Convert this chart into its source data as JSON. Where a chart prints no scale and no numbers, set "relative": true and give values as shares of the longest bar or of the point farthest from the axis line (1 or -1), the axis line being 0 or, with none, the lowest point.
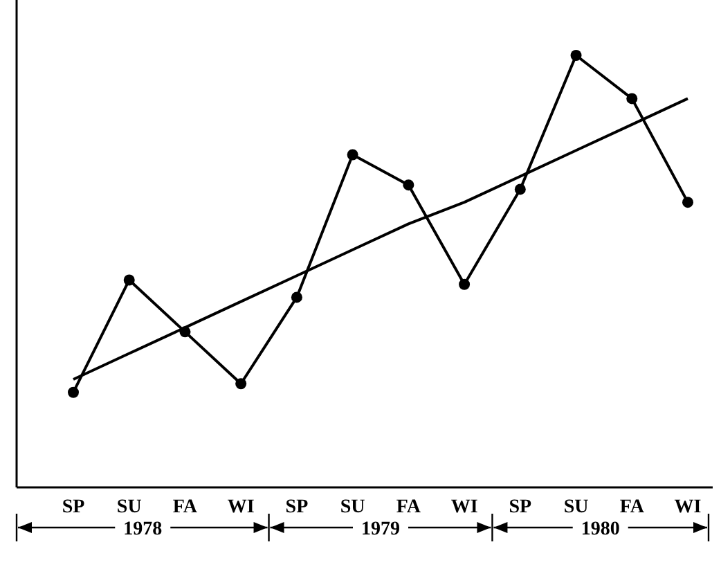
{
  "chart_data": {
    "type": "line",
    "relative": true,
    "categories": [
      "SP",
      "SU",
      "FA",
      "WI",
      "SP",
      "SU",
      "FA",
      "WI",
      "SP",
      "SU",
      "FA",
      "WI"
    ],
    "series": [
      {
        "color": "#000000",
        "marker": "circle",
        "values": [
          0.22,
          0.48,
          0.36,
          0.24,
          0.44,
          0.77,
          0.7,
          0.47,
          0.69,
          1,
          0.9,
          0.66
        ]
      },
      {
        "color": "#000000",
        "marker": "none",
        "values": [
          0.25,
          0.31,
          0.37,
          0.43,
          0.49,
          0.55,
          0.61,
          0.66,
          0.72,
          0.78,
          0.84,
          0.9
        ]
      }
    ],
    "annotations": [
      "1978",
      "1979",
      "1980"
    ]
  }
}
